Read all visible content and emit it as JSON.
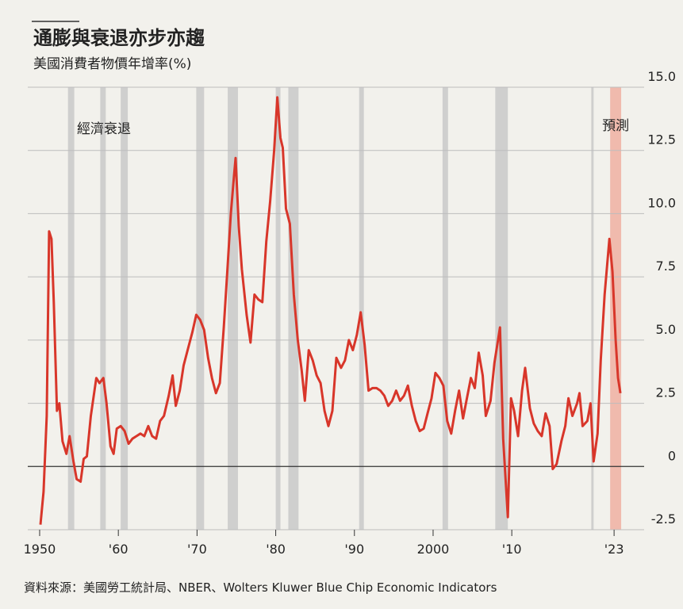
{
  "chart_data": {
    "type": "line",
    "title": "通膨與衰退亦步亦趨",
    "subtitle": "美國消費者物價年增率(%)",
    "source": "資料來源：美國勞工統計局、NBER、Wolters Kluwer Blue Chip Economic Indicators",
    "recession_label": "經濟衰退",
    "forecast_label": "預測",
    "color": "#d8362a",
    "band_color": "#c9c9c9",
    "forecast_color": "#efb4a6",
    "grid": true,
    "xlim": [
      1949.8,
      2024.6
    ],
    "xticks": [
      1950,
      {
        "value": 1960,
        "label": "'60"
      },
      {
        "value": 1970,
        "label": "'70"
      },
      {
        "value": 1980,
        "label": "'80"
      },
      {
        "value": 1990,
        "label": "'90"
      },
      2000,
      {
        "value": 2010,
        "label": "'10"
      },
      {
        "value": 2023,
        "label": "'23"
      }
    ],
    "ylim": [
      -2.5,
      15
    ],
    "yticks": [
      {
        "value": 15,
        "label": "15.0"
      },
      12.5,
      {
        "value": 10,
        "label": "10.0"
      },
      7.5,
      {
        "value": 5,
        "label": "5.0"
      },
      2.5,
      0,
      -2.5
    ],
    "recessions": [
      [
        1953.6,
        1954.4
      ],
      [
        1957.7,
        1958.4
      ],
      [
        1960.3,
        1961.2
      ],
      [
        1969.9,
        1970.9
      ],
      [
        1973.9,
        1975.2
      ],
      [
        1980.0,
        1980.6
      ],
      [
        1981.6,
        1982.9
      ],
      [
        1990.6,
        1991.2
      ],
      [
        2001.2,
        2001.9
      ],
      [
        2007.9,
        2009.5
      ],
      [
        2020.1,
        2020.4
      ]
    ],
    "forecast_range": [
      2022.5,
      2023.9
    ],
    "x": [
      1950.1,
      1950.5,
      1950.9,
      1951.2,
      1951.5,
      1951.8,
      1952.2,
      1952.5,
      1952.9,
      1953.4,
      1953.8,
      1954.3,
      1954.7,
      1955.2,
      1955.6,
      1956.0,
      1956.5,
      1957.2,
      1957.6,
      1958.1,
      1958.5,
      1959.0,
      1959.4,
      1959.8,
      1960.3,
      1960.8,
      1961.3,
      1961.8,
      1962.3,
      1962.8,
      1963.3,
      1963.8,
      1964.3,
      1964.8,
      1965.3,
      1965.8,
      1966.4,
      1966.9,
      1967.3,
      1967.8,
      1968.3,
      1968.8,
      1969.4,
      1969.9,
      1970.4,
      1970.9,
      1971.4,
      1971.9,
      1972.4,
      1972.9,
      1973.4,
      1973.9,
      1974.3,
      1974.7,
      1974.9,
      1975.3,
      1975.7,
      1976.3,
      1976.8,
      1977.3,
      1977.8,
      1978.3,
      1978.8,
      1979.3,
      1979.8,
      1980.2,
      1980.6,
      1980.9,
      1981.3,
      1981.8,
      1982.3,
      1982.8,
      1983.3,
      1983.7,
      1984.2,
      1984.7,
      1985.2,
      1985.7,
      1986.2,
      1986.7,
      1987.2,
      1987.7,
      1988.3,
      1988.8,
      1989.3,
      1989.8,
      1990.3,
      1990.8,
      1991.3,
      1991.8,
      1992.3,
      1992.8,
      1993.3,
      1993.8,
      1994.3,
      1994.8,
      1995.3,
      1995.8,
      1996.3,
      1996.8,
      1997.3,
      1997.8,
      1998.3,
      1998.8,
      1999.3,
      1999.8,
      2000.3,
      2000.8,
      2001.3,
      2001.8,
      2002.3,
      2002.8,
      2003.3,
      2003.8,
      2004.3,
      2004.8,
      2005.3,
      2005.8,
      2006.3,
      2006.7,
      2007.3,
      2007.8,
      2008.5,
      2008.9,
      2009.5,
      2009.9,
      2010.3,
      2010.8,
      2011.3,
      2011.7,
      2012.3,
      2012.8,
      2013.3,
      2013.8,
      2014.3,
      2014.8,
      2015.2,
      2015.7,
      2016.3,
      2016.8,
      2017.2,
      2017.7,
      2018.3,
      2018.6,
      2019.0,
      2019.6,
      2020.0,
      2020.4,
      2020.9,
      2021.3,
      2021.8,
      2022.4,
      2022.8,
      2023.2,
      2023.5,
      2023.8
    ],
    "values": [
      -2.3,
      -1.0,
      2.0,
      9.3,
      9.0,
      6.5,
      2.2,
      2.5,
      1.0,
      0.5,
      1.2,
      0.2,
      -0.5,
      -0.6,
      0.3,
      0.4,
      2.0,
      3.5,
      3.3,
      3.5,
      2.5,
      0.8,
      0.5,
      1.5,
      1.6,
      1.4,
      0.9,
      1.1,
      1.2,
      1.3,
      1.2,
      1.6,
      1.2,
      1.1,
      1.8,
      2.0,
      2.8,
      3.6,
      2.4,
      3.0,
      4.0,
      4.6,
      5.3,
      6.0,
      5.8,
      5.4,
      4.3,
      3.5,
      2.9,
      3.3,
      5.5,
      8.0,
      10.0,
      11.5,
      12.2,
      9.5,
      7.8,
      6.0,
      4.9,
      6.8,
      6.6,
      6.5,
      8.9,
      10.5,
      12.5,
      14.6,
      13.0,
      12.6,
      10.2,
      9.6,
      6.8,
      5.0,
      3.8,
      2.6,
      4.6,
      4.2,
      3.6,
      3.3,
      2.2,
      1.6,
      2.2,
      4.3,
      3.9,
      4.2,
      5.0,
      4.6,
      5.2,
      6.1,
      4.8,
      3.0,
      3.1,
      3.1,
      3.0,
      2.8,
      2.4,
      2.6,
      3.0,
      2.6,
      2.8,
      3.2,
      2.4,
      1.8,
      1.4,
      1.5,
      2.1,
      2.7,
      3.7,
      3.5,
      3.2,
      1.8,
      1.3,
      2.2,
      3.0,
      1.9,
      2.7,
      3.5,
      3.1,
      4.5,
      3.6,
      2.0,
      2.6,
      4.1,
      5.5,
      1.1,
      -2.0,
      2.7,
      2.2,
      1.2,
      3.0,
      3.9,
      2.3,
      1.7,
      1.4,
      1.2,
      2.1,
      1.6,
      -0.1,
      0.1,
      1.0,
      1.6,
      2.7,
      2.0,
      2.5,
      2.9,
      1.6,
      1.8,
      2.5,
      0.2,
      1.3,
      4.2,
      6.8,
      9.0,
      7.7,
      5.0,
      3.5,
      2.9
    ]
  }
}
